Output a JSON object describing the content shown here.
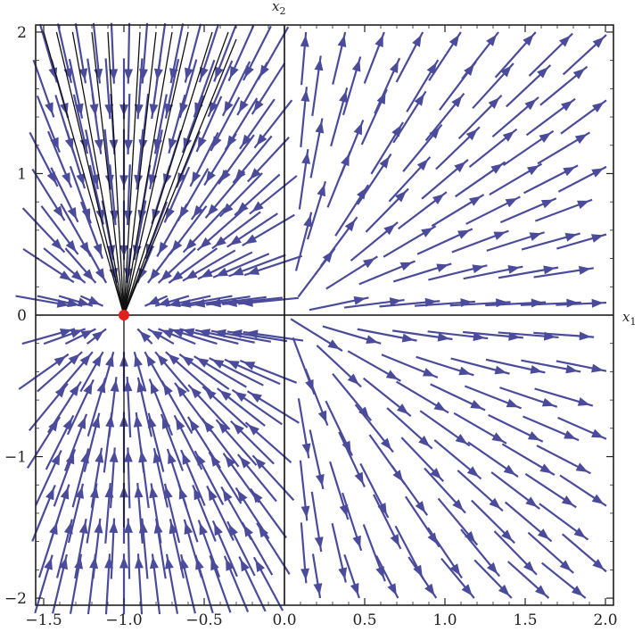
{
  "chart_data": {
    "type": "vector_field",
    "xlabel": "x1",
    "ylabel": "x2",
    "xlim": [
      -1.55,
      2.05
    ],
    "ylim": [
      -2.05,
      2.05
    ],
    "x_ticks": [
      -1.5,
      -1.0,
      -0.5,
      0.0,
      0.5,
      1.0,
      1.5,
      2.0
    ],
    "x_tick_labels": [
      "−1.5",
      "−1.0",
      "−0.5",
      "0.0",
      "0.5",
      "1.0",
      "1.5",
      "2.0"
    ],
    "y_ticks": [
      -2,
      -1,
      0,
      1,
      2
    ],
    "y_tick_labels": [
      "−2",
      "−1",
      "0",
      "1",
      "2"
    ],
    "equilibrium": {
      "x": -1.0,
      "y": 0.0,
      "color": "#e0201c"
    },
    "field_left_of_zero": "converges to equilibrium",
    "field_right_of_zero": "diverges from origin",
    "arrow_color": "#4b4b9c",
    "trajectory_color": "#111111",
    "trajectories_to_equilibrium": [
      {
        "x0": -1.5,
        "y0": 2.0
      },
      {
        "x0": -1.42,
        "y0": 2.0
      },
      {
        "x0": -1.32,
        "y0": 2.0
      },
      {
        "x0": -1.2,
        "y0": 2.0
      },
      {
        "x0": -1.1,
        "y0": 2.0
      },
      {
        "x0": -1.0,
        "y0": 1.5
      },
      {
        "x0": -0.9,
        "y0": 2.0
      },
      {
        "x0": -0.8,
        "y0": 2.0
      },
      {
        "x0": -0.7,
        "y0": 2.0
      },
      {
        "x0": -0.6,
        "y0": 2.0
      },
      {
        "x0": -0.45,
        "y0": 2.0
      },
      {
        "x0": -0.35,
        "y0": 2.0
      },
      {
        "x0": -0.3,
        "y0": 1.95
      },
      {
        "x0": -1.0,
        "y0": -1.5
      }
    ],
    "grid": false
  }
}
